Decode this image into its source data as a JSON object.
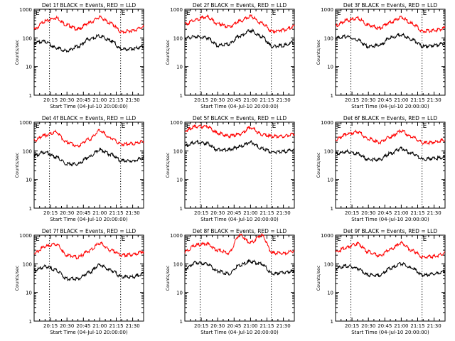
{
  "figure": {
    "xlabel": "Start Time (04-Jul-10 20:00:00)",
    "ylabel": "Counts/sec",
    "x_tick_labels": [
      "20:15",
      "20:30",
      "20:45",
      "21:00",
      "21:15",
      "21:30"
    ],
    "y_tick_labels": [
      "1",
      "10",
      "100",
      "1000"
    ],
    "marker_label_left": "E",
    "marker_label_right": "E",
    "colors": {
      "events": "#000000",
      "lld": "#ff0000",
      "axes": "#000000"
    }
  },
  "chart_data": [
    {
      "type": "line",
      "title": "Det 1f BLACK = Events, RED = LLD",
      "xlabel": "Start Time (04-Jul-10 20:00:00)",
      "ylabel": "Counts/sec",
      "xlim": [
        "20:00",
        "21:40"
      ],
      "ylim": [
        1,
        1000
      ],
      "yscale": "log",
      "grid": false,
      "x_minutes": [
        0,
        10,
        20,
        30,
        40,
        50,
        60,
        70,
        80,
        90,
        100
      ],
      "markers_minutes": [
        14,
        79
      ],
      "series": [
        {
          "name": "LLD",
          "color": "#ff0000",
          "values": [
            200,
            380,
            500,
            280,
            200,
            330,
            520,
            320,
            160,
            180,
            240
          ]
        },
        {
          "name": "Events",
          "color": "#000000",
          "values": [
            70,
            75,
            45,
            35,
            50,
            90,
            115,
            80,
            40,
            42,
            50
          ]
        }
      ]
    },
    {
      "type": "line",
      "title": "Det 2f BLACK = Events, RED = LLD",
      "xlabel": "Start Time (04-Jul-10 20:00:00)",
      "ylabel": "Counts/sec",
      "xlim": [
        "20:00",
        "21:40"
      ],
      "ylim": [
        1,
        1000
      ],
      "yscale": "log",
      "grid": false,
      "x_minutes": [
        0,
        10,
        20,
        30,
        40,
        50,
        60,
        70,
        80,
        90,
        100
      ],
      "markers_minutes": [
        14,
        79
      ],
      "series": [
        {
          "name": "LLD",
          "color": "#ff0000",
          "values": [
            300,
            430,
            550,
            320,
            240,
            380,
            560,
            330,
            170,
            190,
            250
          ]
        },
        {
          "name": "Events",
          "color": "#000000",
          "values": [
            100,
            110,
            100,
            55,
            60,
            115,
            180,
            110,
            50,
            55,
            70
          ]
        }
      ]
    },
    {
      "type": "line",
      "title": "Det 3f BLACK = Events, RED = LLD",
      "xlabel": "Start Time (04-Jul-10 20:00:00)",
      "ylabel": "Counts/sec",
      "xlim": [
        "20:00",
        "21:40"
      ],
      "ylim": [
        1,
        1000
      ],
      "yscale": "log",
      "grid": false,
      "x_minutes": [
        0,
        10,
        20,
        30,
        40,
        50,
        60,
        70,
        80,
        90,
        100
      ],
      "markers_minutes": [
        14,
        79
      ],
      "series": [
        {
          "name": "LLD",
          "color": "#ff0000",
          "values": [
            270,
            400,
            480,
            280,
            220,
            350,
            520,
            310,
            170,
            180,
            220
          ]
        },
        {
          "name": "Events",
          "color": "#000000",
          "values": [
            100,
            110,
            85,
            50,
            55,
            100,
            130,
            85,
            50,
            55,
            65
          ]
        }
      ]
    },
    {
      "type": "line",
      "title": "Det 4f BLACK = Events, RED = LLD",
      "xlabel": "Start Time (04-Jul-10 20:00:00)",
      "ylabel": "Counts/sec",
      "xlim": [
        "20:00",
        "21:40"
      ],
      "ylim": [
        1,
        1000
      ],
      "yscale": "log",
      "grid": false,
      "x_minutes": [
        0,
        10,
        20,
        30,
        40,
        50,
        60,
        70,
        80,
        90,
        100
      ],
      "markers_minutes": [
        14,
        79
      ],
      "series": [
        {
          "name": "LLD",
          "color": "#ff0000",
          "values": [
            230,
            350,
            450,
            200,
            150,
            250,
            500,
            280,
            170,
            180,
            210
          ]
        },
        {
          "name": "Events",
          "color": "#000000",
          "values": [
            70,
            90,
            60,
            35,
            35,
            60,
            110,
            75,
            45,
            45,
            55
          ]
        }
      ]
    },
    {
      "type": "line",
      "title": "Det 5f BLACK = Events, RED = LLD",
      "xlabel": "Start Time (04-Jul-10 20:00:00)",
      "ylabel": "Counts/sec",
      "xlim": [
        "20:00",
        "21:40"
      ],
      "ylim": [
        1,
        1000
      ],
      "yscale": "log",
      "grid": false,
      "x_minutes": [
        0,
        10,
        20,
        30,
        40,
        50,
        60,
        70,
        80,
        90,
        100
      ],
      "markers_minutes": [
        14,
        79
      ],
      "series": [
        {
          "name": "LLD",
          "color": "#ff0000",
          "values": [
            500,
            700,
            720,
            420,
            330,
            380,
            650,
            380,
            320,
            320,
            380
          ]
        },
        {
          "name": "Events",
          "color": "#000000",
          "values": [
            150,
            200,
            180,
            110,
            110,
            140,
            200,
            120,
            90,
            95,
            110
          ]
        }
      ]
    },
    {
      "type": "line",
      "title": "Det 6f BLACK = Events, RED = LLD",
      "xlabel": "Start Time (04-Jul-10 20:00:00)",
      "ylabel": "Counts/sec",
      "xlim": [
        "20:00",
        "21:40"
      ],
      "ylim": [
        1,
        1000
      ],
      "yscale": "log",
      "grid": false,
      "x_minutes": [
        0,
        10,
        20,
        30,
        40,
        50,
        60,
        70,
        80,
        90,
        100
      ],
      "markers_minutes": [
        14,
        79
      ],
      "series": [
        {
          "name": "LLD",
          "color": "#ff0000",
          "values": [
            250,
            380,
            460,
            260,
            200,
            300,
            500,
            300,
            190,
            200,
            240
          ]
        },
        {
          "name": "Events",
          "color": "#000000",
          "values": [
            80,
            95,
            80,
            50,
            50,
            80,
            120,
            80,
            50,
            55,
            60
          ]
        }
      ]
    },
    {
      "type": "line",
      "title": "Det 7f BLACK = Events, RED = LLD",
      "xlabel": "Start Time (04-Jul-10 20:00:00)",
      "ylabel": "Counts/sec",
      "xlim": [
        "20:00",
        "21:40"
      ],
      "ylim": [
        1,
        1000
      ],
      "yscale": "log",
      "grid": false,
      "x_minutes": [
        0,
        10,
        20,
        30,
        40,
        50,
        60,
        70,
        80,
        90,
        100
      ],
      "markers_minutes": [
        14,
        79
      ],
      "series": [
        {
          "name": "LLD",
          "color": "#ff0000",
          "values": [
            230,
            400,
            480,
            200,
            170,
            280,
            520,
            300,
            200,
            210,
            270
          ]
        },
        {
          "name": "Events",
          "color": "#000000",
          "values": [
            60,
            80,
            60,
            30,
            30,
            50,
            90,
            60,
            35,
            35,
            45
          ]
        }
      ]
    },
    {
      "type": "line",
      "title": "Det 8f BLACK = Events, RED = LLD",
      "xlabel": "Start Time (04-Jul-10 20:00:00)",
      "ylabel": "Counts/sec",
      "xlim": [
        "20:00",
        "21:40"
      ],
      "ylim": [
        1,
        1000
      ],
      "yscale": "log",
      "grid": false,
      "x_minutes": [
        0,
        10,
        20,
        30,
        40,
        50,
        60,
        70,
        80,
        90,
        100
      ],
      "markers_minutes": [
        14,
        79
      ],
      "series": [
        {
          "name": "LLD",
          "color": "#ff0000",
          "values": [
            260,
            450,
            500,
            300,
            240,
            1000,
            550,
            1000,
            240,
            230,
            280
          ]
        },
        {
          "name": "Events",
          "color": "#000000",
          "values": [
            70,
            110,
            100,
            55,
            45,
            90,
            120,
            100,
            45,
            50,
            55
          ]
        }
      ]
    },
    {
      "type": "line",
      "title": "Det 9f BLACK = Events, RED = LLD",
      "xlabel": "Start Time (04-Jul-10 20:00:00)",
      "ylabel": "Counts/sec",
      "xlim": [
        "20:00",
        "21:40"
      ],
      "ylim": [
        1,
        1000
      ],
      "yscale": "log",
      "grid": false,
      "x_minutes": [
        0,
        10,
        20,
        30,
        40,
        50,
        60,
        70,
        80,
        90,
        100
      ],
      "markers_minutes": [
        14,
        79
      ],
      "series": [
        {
          "name": "LLD",
          "color": "#ff0000",
          "values": [
            250,
            380,
            500,
            260,
            190,
            320,
            530,
            290,
            170,
            180,
            230
          ]
        },
        {
          "name": "Events",
          "color": "#000000",
          "values": [
            70,
            85,
            70,
            40,
            40,
            70,
            100,
            70,
            40,
            45,
            55
          ]
        }
      ]
    }
  ]
}
